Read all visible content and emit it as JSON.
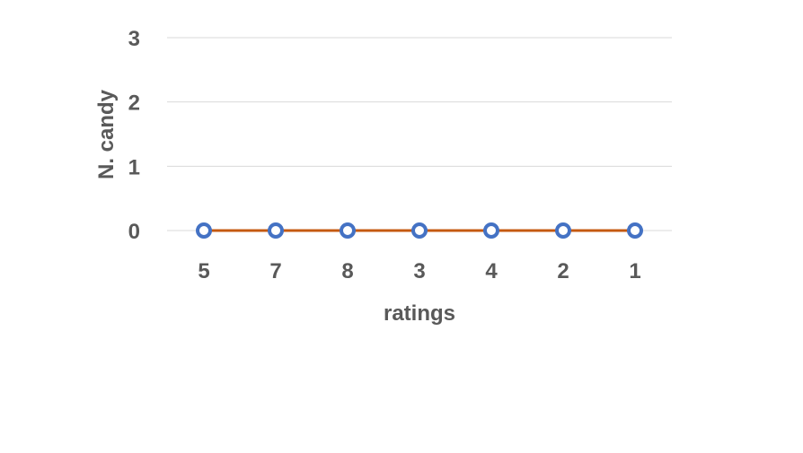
{
  "chart_data": {
    "type": "line",
    "title": "",
    "xlabel": "ratings",
    "ylabel": "N. candy",
    "categories": [
      "5",
      "7",
      "8",
      "3",
      "4",
      "2",
      "1"
    ],
    "series": [
      {
        "values": [
          0,
          0,
          0,
          0,
          0,
          0,
          0
        ],
        "line_color": "#C55A11",
        "marker_color": "#4472C4",
        "marker_fill": "#ffffff"
      }
    ],
    "ylim": [
      0,
      3
    ],
    "yticks": [
      0,
      1,
      2,
      3
    ],
    "grid": true,
    "grid_color": "#D9D9D9",
    "text_color": "#595959",
    "legend": "none"
  }
}
